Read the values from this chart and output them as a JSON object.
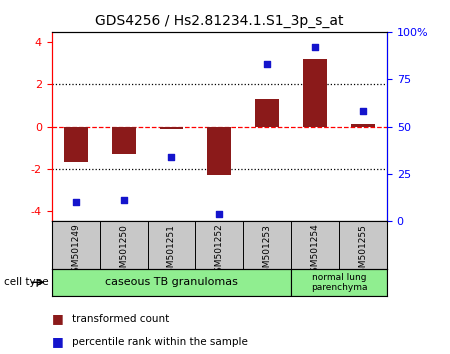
{
  "title": "GDS4256 / Hs2.81234.1.S1_3p_s_at",
  "samples": [
    "GSM501249",
    "GSM501250",
    "GSM501251",
    "GSM501252",
    "GSM501253",
    "GSM501254",
    "GSM501255"
  ],
  "transformed_count": [
    -1.7,
    -1.3,
    -0.1,
    -2.3,
    1.3,
    3.2,
    0.1
  ],
  "percentile_rank": [
    10,
    11,
    34,
    4,
    83,
    92,
    58
  ],
  "bar_color": "#8B1A1A",
  "dot_color": "#1414CC",
  "ylim_left": [
    -4.5,
    4.5
  ],
  "ylim_right": [
    0,
    100
  ],
  "yticks_left": [
    -4,
    -2,
    0,
    2,
    4
  ],
  "yticks_right": [
    0,
    25,
    50,
    75,
    100
  ],
  "yticklabels_right": [
    "0",
    "25",
    "50",
    "75",
    "100%"
  ],
  "hline_y": [
    2.0,
    0.0,
    -2.0
  ],
  "hline_styles": [
    "dotted",
    "dashed",
    "dotted"
  ],
  "hline_colors": [
    "black",
    "red",
    "black"
  ],
  "group1_label": "caseous TB granulomas",
  "group1_indices": [
    0,
    1,
    2,
    3,
    4
  ],
  "group2_label": "normal lung\nparenchyma",
  "group2_indices": [
    5,
    6
  ],
  "group_color": "#90EE90",
  "cell_type_label": "cell type",
  "xtick_bg": "#C8C8C8",
  "legend_items": [
    {
      "label": "transformed count",
      "color": "#8B1A1A"
    },
    {
      "label": "percentile rank within the sample",
      "color": "#1414CC"
    }
  ]
}
